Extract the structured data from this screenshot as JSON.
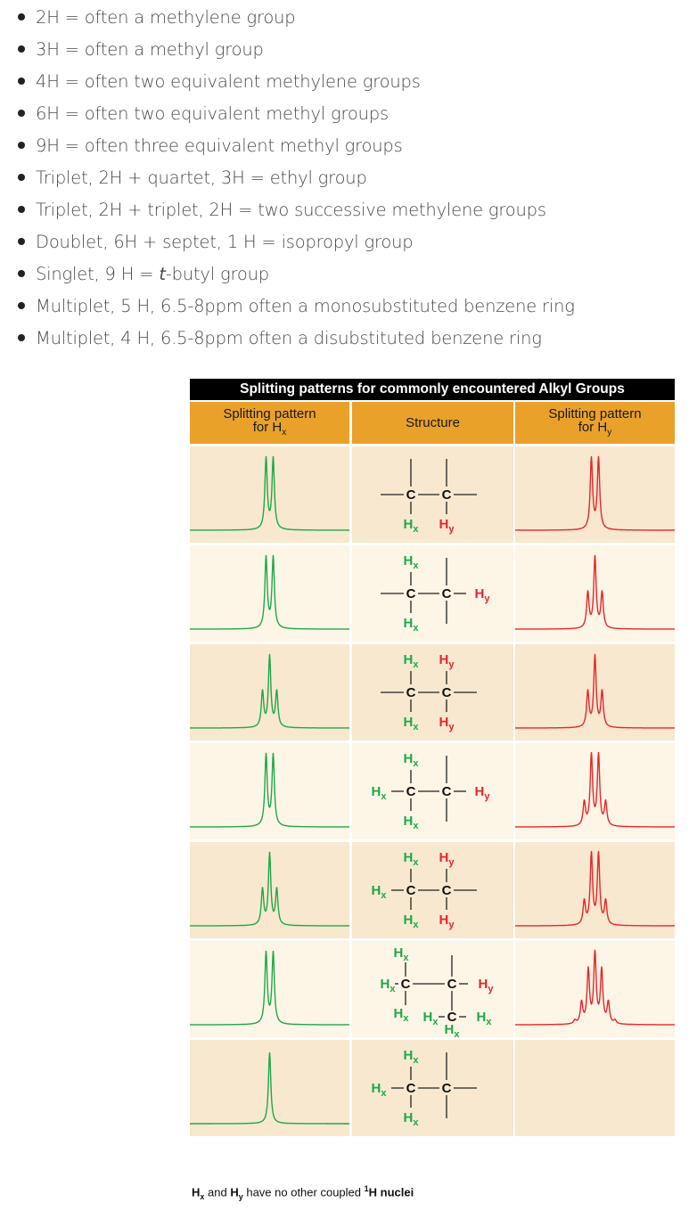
{
  "hints": [
    {
      "text": "2H = often a methylene group"
    },
    {
      "text": "3H = often a methyl group"
    },
    {
      "text": "4H = often two equivalent methylene groups"
    },
    {
      "text": "6H = often two equivalent methyl groups"
    },
    {
      "text": "9H = often three equivalent methyl groups"
    },
    {
      "text": "Triplet, 2H + quartet, 3H = ethyl group"
    },
    {
      "text": "Triplet, 2H + triplet, 2H = two successive methylene groups"
    },
    {
      "text": "Doublet, 6H + septet, 1 H = isopropyl group"
    },
    {
      "pre": "Singlet, 9 H = ",
      "em": "t",
      "post": "-butyl group"
    },
    {
      "text": "Multiplet, 5 H, 6.5-8ppm often a monosubstituted benzene ring"
    },
    {
      "text": "Multiplet, 4 H, 6.5-8ppm often a disubstituted benzene ring"
    }
  ],
  "figure": {
    "title": "Splitting patterns for commonly encountered Alkyl Groups",
    "col_hx": {
      "line1": "Splitting pattern",
      "line2_pre": "for H",
      "line2_sub": "x"
    },
    "col_structure": "Structure",
    "col_hy": {
      "line1": "Splitting pattern",
      "line2_pre": "for H",
      "line2_sub": "y"
    },
    "atom_c": "C",
    "atom_h": "H",
    "sub_x": "x",
    "sub_y": "y",
    "rows": [
      {
        "hx_peaks": 2,
        "hy_peaks": 2
      },
      {
        "hx_peaks": 2,
        "hy_peaks": 3
      },
      {
        "hx_peaks": 3,
        "hy_peaks": 3
      },
      {
        "hx_peaks": 2,
        "hy_peaks": 4
      },
      {
        "hx_peaks": 3,
        "hy_peaks": 4
      },
      {
        "hx_peaks": 2,
        "hy_peaks": 7
      },
      {
        "hx_peaks": 1,
        "hy_peaks": 0
      }
    ],
    "caption": {
      "h": "H",
      "x": "x",
      "and": " and ",
      "y": "y",
      "rest_pre": " have no other coupled ",
      "sup": "1",
      "rest_post": "H nuclei"
    }
  },
  "colors": {
    "hx": "#1ea84a",
    "hy": "#e8262b",
    "header": "#e9a12a",
    "row_dark": "#f7e8cf",
    "row_light": "#fdf5e6"
  }
}
